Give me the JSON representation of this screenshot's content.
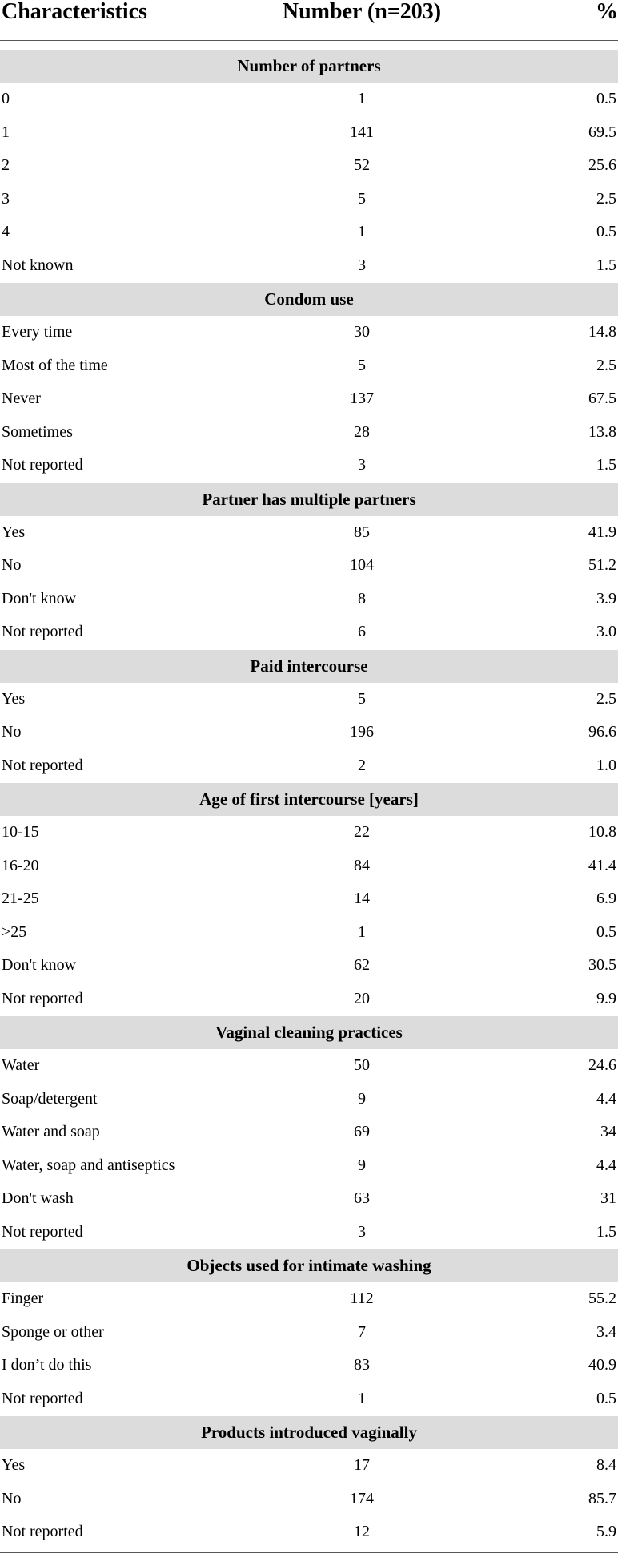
{
  "header": {
    "characteristics": "Characteristics",
    "number": "Number (n=203)",
    "percent": "%"
  },
  "sections": [
    {
      "title": "Number of partners",
      "rows": [
        {
          "label": "0",
          "number": "1",
          "percent": "0.5"
        },
        {
          "label": "1",
          "number": "141",
          "percent": "69.5"
        },
        {
          "label": "2",
          "number": "52",
          "percent": "25.6"
        },
        {
          "label": "3",
          "number": "5",
          "percent": "2.5"
        },
        {
          "label": "4",
          "number": "1",
          "percent": "0.5"
        },
        {
          "label": "Not known",
          "number": "3",
          "percent": "1.5"
        }
      ]
    },
    {
      "title": "Condom use",
      "rows": [
        {
          "label": "Every time",
          "number": "30",
          "percent": "14.8"
        },
        {
          "label": "Most of the time",
          "number": "5",
          "percent": "2.5"
        },
        {
          "label": "Never",
          "number": "137",
          "percent": "67.5"
        },
        {
          "label": "Sometimes",
          "number": "28",
          "percent": "13.8"
        },
        {
          "label": "Not reported",
          "number": "3",
          "percent": "1.5"
        }
      ]
    },
    {
      "title": "Partner has multiple partners",
      "rows": [
        {
          "label": "Yes",
          "number": "85",
          "percent": "41.9"
        },
        {
          "label": "No",
          "number": "104",
          "percent": "51.2"
        },
        {
          "label": "Don't know",
          "number": "8",
          "percent": "3.9"
        },
        {
          "label": "Not reported",
          "number": "6",
          "percent": "3.0"
        }
      ]
    },
    {
      "title": "Paid intercourse",
      "rows": [
        {
          "label": "Yes",
          "number": "5",
          "percent": "2.5"
        },
        {
          "label": "No",
          "number": "196",
          "percent": "96.6"
        },
        {
          "label": "Not reported",
          "number": "2",
          "percent": "1.0"
        }
      ]
    },
    {
      "title": "Age of first intercourse [years]",
      "rows": [
        {
          "label": "10-15",
          "number": "22",
          "percent": "10.8"
        },
        {
          "label": "16-20",
          "number": "84",
          "percent": "41.4"
        },
        {
          "label": "21-25",
          "number": "14",
          "percent": "6.9"
        },
        {
          "label": ">25",
          "number": "1",
          "percent": "0.5"
        },
        {
          "label": "Don't know",
          "number": "62",
          "percent": "30.5"
        },
        {
          "label": "Not reported",
          "number": "20",
          "percent": "9.9"
        }
      ]
    },
    {
      "title": "Vaginal cleaning practices",
      "rows": [
        {
          "label": "Water",
          "number": "50",
          "percent": "24.6"
        },
        {
          "label": "Soap/detergent",
          "number": "9",
          "percent": "4.4"
        },
        {
          "label": "Water and soap",
          "number": "69",
          "percent": "34"
        },
        {
          "label": "Water, soap and antiseptics",
          "number": "9",
          "percent": "4.4"
        },
        {
          "label": "Don't wash",
          "number": "63",
          "percent": "31"
        },
        {
          "label": "Not reported",
          "number": "3",
          "percent": "1.5"
        }
      ]
    },
    {
      "title": "Objects used for intimate washing",
      "rows": [
        {
          "label": "Finger",
          "number": "112",
          "percent": "55.2"
        },
        {
          "label": "Sponge or other",
          "number": "7",
          "percent": "3.4"
        },
        {
          "label": "I don’t do this",
          "number": "83",
          "percent": "40.9"
        },
        {
          "label": "Not reported",
          "number": "1",
          "percent": "0.5"
        }
      ]
    },
    {
      "title": "Products introduced vaginally",
      "rows": [
        {
          "label": "Yes",
          "number": "17",
          "percent": "8.4"
        },
        {
          "label": "No",
          "number": "174",
          "percent": "85.7"
        },
        {
          "label": "Not reported",
          "number": "12",
          "percent": "5.9"
        }
      ]
    }
  ]
}
